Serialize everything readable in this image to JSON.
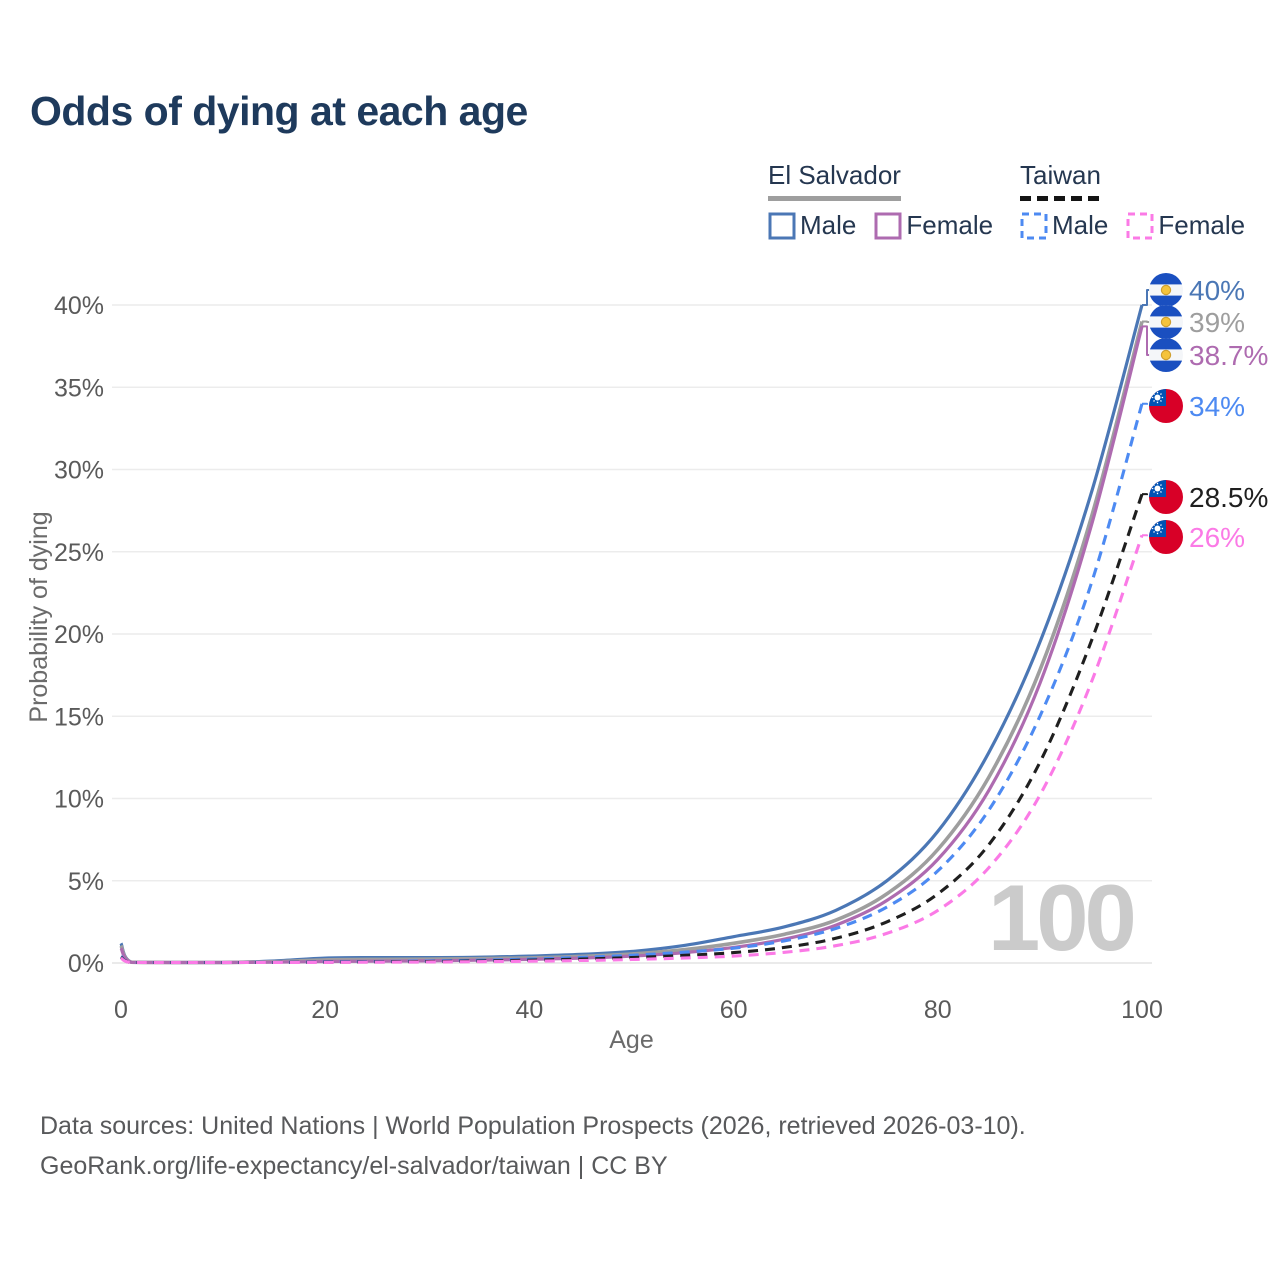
{
  "title": "Odds of dying at each age",
  "watermark": "100",
  "legend": {
    "groups": [
      {
        "label": "El Salvador",
        "line_style": "solid",
        "underline_color": "#9e9e9e",
        "items": [
          {
            "label": "Male",
            "color": "#4b77b5"
          },
          {
            "label": "Female",
            "color": "#ae6bb0"
          }
        ]
      },
      {
        "label": "Taiwan",
        "line_style": "dashed",
        "underline_color": "#141414",
        "items": [
          {
            "label": "Male",
            "color": "#4d8af2"
          },
          {
            "label": "Female",
            "color": "#fb7ae6"
          }
        ]
      }
    ]
  },
  "chart_data": {
    "type": "line",
    "title": "Odds of dying at each age",
    "xlabel": "Age",
    "ylabel": "Probability of dying",
    "xlim": [
      0,
      100
    ],
    "ylim": [
      0,
      40
    ],
    "x_ticks": [
      0,
      20,
      40,
      60,
      80,
      100
    ],
    "y_ticks": [
      0,
      5,
      10,
      15,
      20,
      25,
      30,
      35,
      40
    ],
    "y_tick_suffix": "%",
    "grid": "horizontal-only",
    "legend_position": "top-right",
    "ages": [
      0,
      1,
      5,
      10,
      15,
      20,
      25,
      30,
      35,
      40,
      45,
      50,
      55,
      60,
      65,
      70,
      75,
      80,
      85,
      90,
      95,
      100
    ],
    "series": [
      {
        "id": "el-salvador-male",
        "name": "El Salvador Male",
        "country": "el-salvador",
        "sex": "male",
        "color": "#4b77b5",
        "dash": false,
        "end_label": "40%",
        "values": [
          1.2,
          0.06,
          0.03,
          0.03,
          0.12,
          0.3,
          0.33,
          0.33,
          0.35,
          0.42,
          0.52,
          0.7,
          1.05,
          1.6,
          2.2,
          3.2,
          5.0,
          8.0,
          12.8,
          19.5,
          28.5,
          40.0
        ]
      },
      {
        "id": "el-salvador-combined",
        "name": "El Salvador Combined",
        "country": "el-salvador",
        "sex": "both",
        "color": "#9e9e9e",
        "dash": false,
        "end_label": "39%",
        "values": [
          1.05,
          0.05,
          0.025,
          0.025,
          0.08,
          0.19,
          0.22,
          0.23,
          0.26,
          0.31,
          0.4,
          0.55,
          0.8,
          1.2,
          1.75,
          2.6,
          4.2,
          6.9,
          11.3,
          17.8,
          27.0,
          39.0
        ]
      },
      {
        "id": "el-salvador-female",
        "name": "El Salvador Female",
        "country": "el-salvador",
        "sex": "female",
        "color": "#ae6bb0",
        "dash": false,
        "end_label": "38.7%",
        "values": [
          0.9,
          0.045,
          0.02,
          0.02,
          0.05,
          0.09,
          0.11,
          0.13,
          0.17,
          0.22,
          0.3,
          0.42,
          0.62,
          0.95,
          1.45,
          2.3,
          3.8,
          6.3,
          10.5,
          17.0,
          26.5,
          38.7
        ]
      },
      {
        "id": "taiwan-male",
        "name": "Taiwan Male",
        "country": "taiwan",
        "sex": "male",
        "color": "#4d8af2",
        "dash": true,
        "end_label": "34%",
        "values": [
          0.4,
          0.025,
          0.012,
          0.012,
          0.035,
          0.07,
          0.09,
          0.12,
          0.17,
          0.24,
          0.34,
          0.47,
          0.65,
          0.9,
          1.35,
          2.1,
          3.4,
          5.6,
          9.3,
          15.0,
          23.0,
          34.0
        ]
      },
      {
        "id": "taiwan-combined",
        "name": "Taiwan Combined",
        "country": "taiwan",
        "sex": "both",
        "color": "#1f1f1f",
        "dash": true,
        "end_label": "28.5%",
        "values": [
          0.35,
          0.02,
          0.01,
          0.01,
          0.028,
          0.05,
          0.07,
          0.09,
          0.12,
          0.17,
          0.24,
          0.33,
          0.46,
          0.63,
          0.95,
          1.5,
          2.5,
          4.2,
          7.2,
          12.2,
          19.5,
          28.5
        ]
      },
      {
        "id": "taiwan-female",
        "name": "Taiwan Female",
        "country": "taiwan",
        "sex": "female",
        "color": "#fb7ae6",
        "dash": true,
        "end_label": "26%",
        "values": [
          0.3,
          0.018,
          0.009,
          0.009,
          0.02,
          0.035,
          0.05,
          0.06,
          0.08,
          0.11,
          0.15,
          0.21,
          0.3,
          0.42,
          0.65,
          1.05,
          1.8,
          3.2,
          5.8,
          10.2,
          17.0,
          26.0
        ]
      }
    ]
  },
  "footer": {
    "line1": "Data sources: United Nations | World Population Prospects (2026, retrieved 2026-03-10).",
    "line2": "GeoRank.org/life-expectancy/el-salvador/taiwan | CC BY"
  }
}
